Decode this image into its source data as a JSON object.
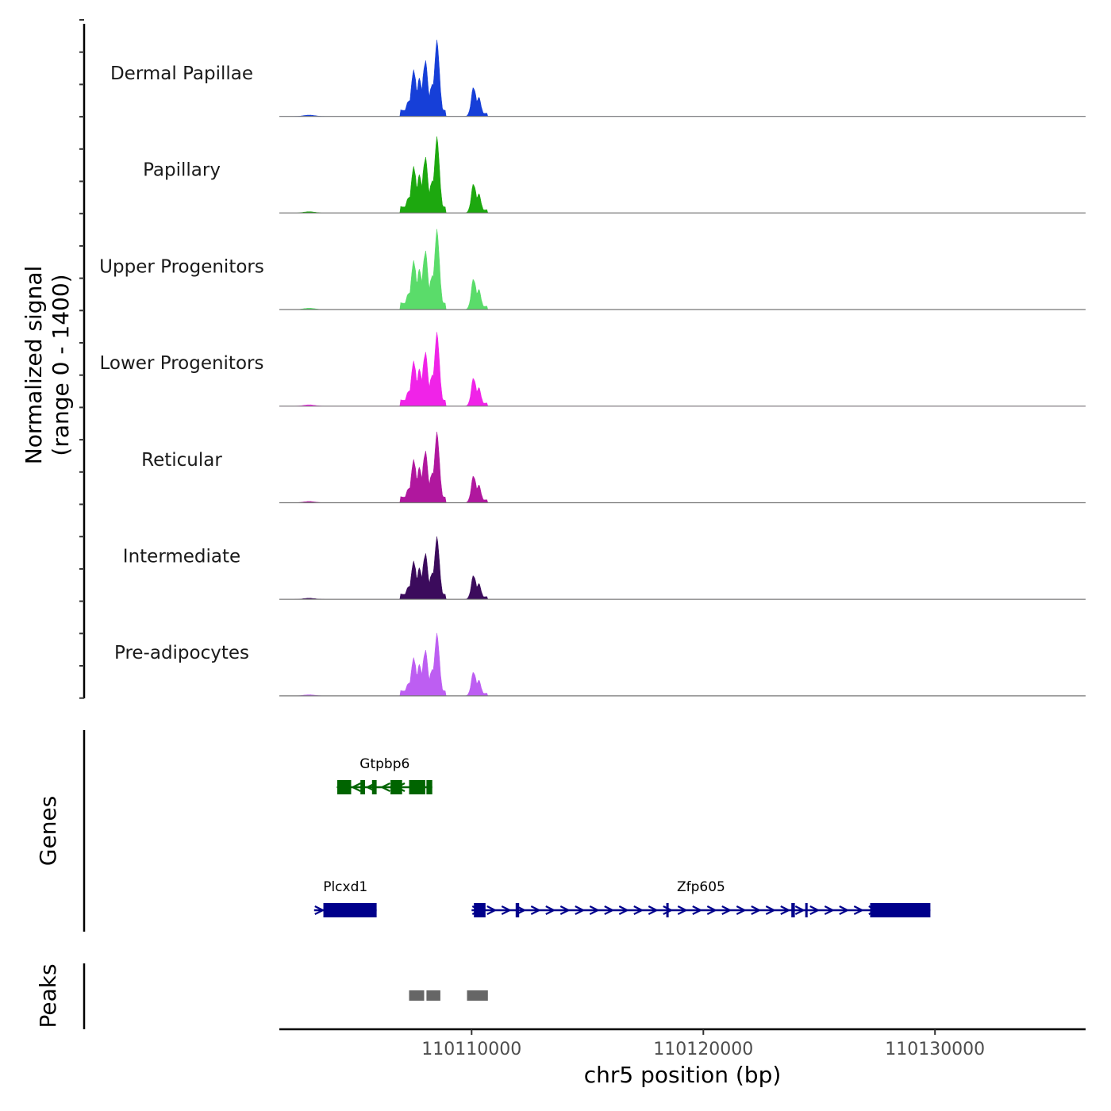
{
  "chart_data": {
    "type": "area",
    "title": "",
    "xlabel": "chr5 position (bp)",
    "ylabel_line1": "Normalized signal",
    "ylabel_line2": "(range 0 - 1400)",
    "y_range": [
      0,
      1400
    ],
    "x_range": [
      110101700,
      110136500
    ],
    "x_ticks": [
      {
        "value": 110110000,
        "label": "110110000"
      },
      {
        "value": 110120000,
        "label": "110120000"
      },
      {
        "value": 110130000,
        "label": "110130000"
      }
    ],
    "peak_shape": [
      {
        "pos": 110103000,
        "height": 25
      },
      {
        "pos": 110107300,
        "height": 300
      },
      {
        "pos": 110107500,
        "height": 870
      },
      {
        "pos": 110107750,
        "height": 700
      },
      {
        "pos": 110108000,
        "height": 1000
      },
      {
        "pos": 110108300,
        "height": 600
      },
      {
        "pos": 110108500,
        "height": 1400
      },
      {
        "pos": 110110100,
        "height": 520
      },
      {
        "pos": 110110300,
        "height": 330
      }
    ],
    "series": [
      {
        "name": "Dermal Papillae",
        "color": "#163fd8",
        "scale": 0.95
      },
      {
        "name": "Papillary",
        "color": "#1da80f",
        "scale": 0.95
      },
      {
        "name": "Upper Progenitors",
        "color": "#5adc6a",
        "scale": 1.0
      },
      {
        "name": "Lower Progenitors",
        "color": "#f023e8",
        "scale": 0.92
      },
      {
        "name": "Reticular",
        "color": "#b0179e",
        "scale": 0.88
      },
      {
        "name": "Intermediate",
        "color": "#3b0b5c",
        "scale": 0.78
      },
      {
        "name": "Pre-adipocytes",
        "color": "#bd5ef2",
        "scale": 0.78
      }
    ],
    "genes_panel": {
      "label": "Genes",
      "genes": [
        {
          "name": "Gtpbp6",
          "start": 110104200,
          "end": 110108300,
          "strand": "-",
          "color": "#006400",
          "exons": [
            [
              110104200,
              110104800
            ],
            [
              110105200,
              110105400
            ],
            [
              110105700,
              110105900
            ],
            [
              110106500,
              110107000
            ],
            [
              110107300,
              110108000
            ],
            [
              110108050,
              110108300
            ]
          ]
        },
        {
          "name": "Plcxd1",
          "start": 110103200,
          "end": 110105900,
          "strand": "+",
          "color": "#00008b",
          "exons": [
            [
              110103600,
              110105900
            ]
          ]
        },
        {
          "name": "Zfp605",
          "start": 110110000,
          "end": 110129800,
          "strand": "+",
          "color": "#00008b",
          "exons": [
            [
              110110100,
              110110600
            ],
            [
              110111900,
              110112050
            ],
            [
              110118400,
              110118500
            ],
            [
              110123800,
              110123950
            ],
            [
              110124400,
              110124500
            ],
            [
              110127200,
              110129800
            ]
          ]
        }
      ]
    },
    "peaks_panel": {
      "label": "Peaks",
      "color": "#666666",
      "peaks": [
        [
          110107300,
          110107950
        ],
        [
          110108050,
          110108650
        ],
        [
          110109800,
          110110700
        ]
      ]
    }
  }
}
